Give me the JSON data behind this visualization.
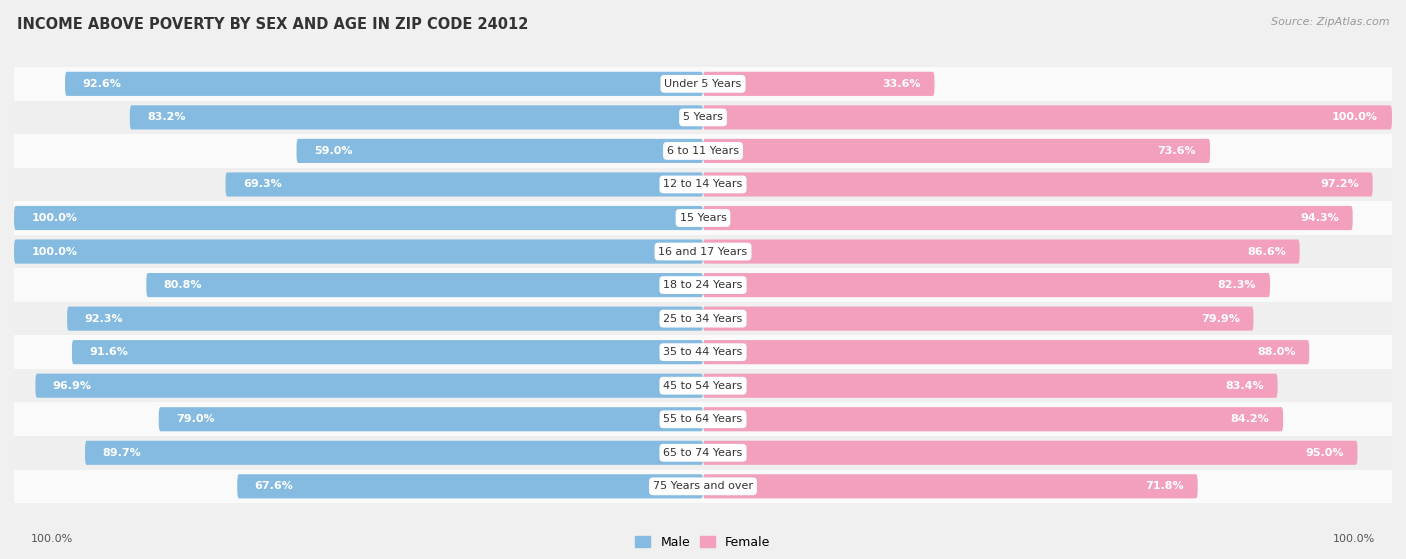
{
  "title": "INCOME ABOVE POVERTY BY SEX AND AGE IN ZIP CODE 24012",
  "source": "Source: ZipAtlas.com",
  "categories": [
    "Under 5 Years",
    "5 Years",
    "6 to 11 Years",
    "12 to 14 Years",
    "15 Years",
    "16 and 17 Years",
    "18 to 24 Years",
    "25 to 34 Years",
    "35 to 44 Years",
    "45 to 54 Years",
    "55 to 64 Years",
    "65 to 74 Years",
    "75 Years and over"
  ],
  "male_values": [
    92.6,
    83.2,
    59.0,
    69.3,
    100.0,
    100.0,
    80.8,
    92.3,
    91.6,
    96.9,
    79.0,
    89.7,
    67.6
  ],
  "female_values": [
    33.6,
    100.0,
    73.6,
    97.2,
    94.3,
    86.6,
    82.3,
    79.9,
    88.0,
    83.4,
    84.2,
    95.0,
    71.8
  ],
  "male_color": "#85BBE0",
  "female_color": "#F2A0BE",
  "male_color_dark": "#6aaad4",
  "female_color_dark": "#ee7faa",
  "background_color": "#f0f0f0",
  "row_color_light": "#fafafa",
  "row_color_dark": "#efefef",
  "max_value": 100.0,
  "title_fontsize": 10.5,
  "label_fontsize": 8,
  "category_fontsize": 8,
  "source_fontsize": 8
}
